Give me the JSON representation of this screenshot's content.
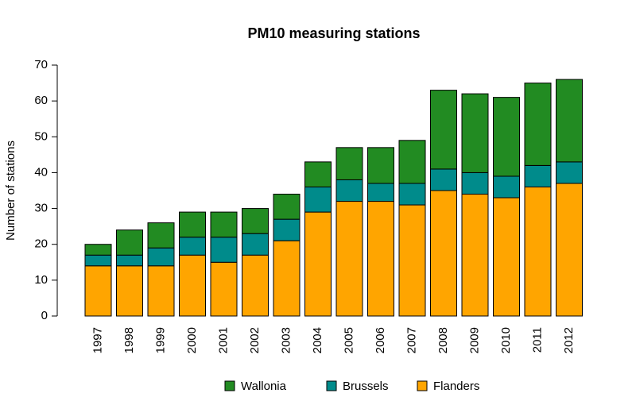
{
  "chart_data": {
    "type": "stacked_bar",
    "title": "PM10 measuring stations",
    "y_label": "Number of stations",
    "categories": [
      "1997",
      "1998",
      "1999",
      "2000",
      "2001",
      "2002",
      "2003",
      "2004",
      "2005",
      "2006",
      "2007",
      "2008",
      "2009",
      "2010",
      "2011",
      "2012"
    ],
    "series": [
      {
        "name": "Flanders",
        "color": "#FFA500",
        "values": [
          14,
          14,
          14,
          17,
          15,
          17,
          21,
          29,
          32,
          32,
          31,
          35,
          34,
          33,
          36,
          37
        ]
      },
      {
        "name": "Brussels",
        "color": "#008B8B",
        "values": [
          3,
          3,
          5,
          5,
          7,
          6,
          6,
          7,
          6,
          5,
          6,
          6,
          6,
          6,
          6,
          6
        ]
      },
      {
        "name": "Wallonia",
        "color": "#228B22",
        "values": [
          3,
          7,
          7,
          7,
          7,
          7,
          7,
          7,
          9,
          10,
          12,
          22,
          22,
          22,
          23,
          23
        ]
      }
    ],
    "ylim": [
      0,
      70
    ],
    "yticks": [
      0,
      10,
      20,
      30,
      40,
      50,
      60,
      70
    ],
    "legend": "bottom"
  }
}
